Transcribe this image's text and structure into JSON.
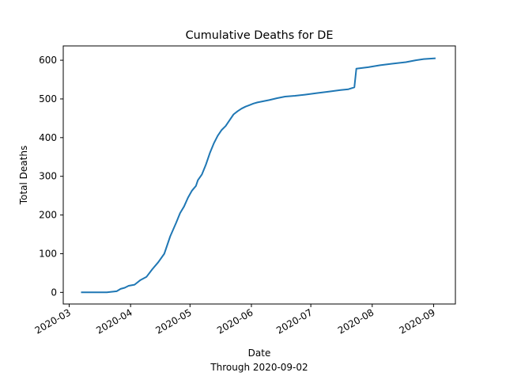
{
  "chart_data": {
    "type": "line",
    "title": "Cumulative Deaths for DE",
    "xlabel": "Date",
    "xlabel_sub": "Through 2020-09-02",
    "ylabel": "Total Deaths",
    "xlim": [
      "2020-02-27",
      "2020-09-12"
    ],
    "ylim": [
      -30,
      637
    ],
    "grid": false,
    "legend": "none",
    "x_ticks": [
      "2020-03",
      "2020-04",
      "2020-05",
      "2020-06",
      "2020-07",
      "2020-08",
      "2020-09"
    ],
    "y_ticks": [
      0,
      100,
      200,
      300,
      400,
      500,
      600
    ],
    "colors": {
      "line": "#1f77b4"
    },
    "series": [
      {
        "x": [
          "2020-03-07",
          "2020-03-20",
          "2020-03-25",
          "2020-03-27",
          "2020-03-29",
          "2020-03-31",
          "2020-04-03",
          "2020-04-06",
          "2020-04-09",
          "2020-04-12",
          "2020-04-15",
          "2020-04-18",
          "2020-04-21",
          "2020-04-24",
          "2020-04-26",
          "2020-04-28",
          "2020-04-30",
          "2020-05-02",
          "2020-05-04",
          "2020-05-05",
          "2020-05-07",
          "2020-05-09",
          "2020-05-11",
          "2020-05-13",
          "2020-05-15",
          "2020-05-17",
          "2020-05-19",
          "2020-05-21",
          "2020-05-23",
          "2020-05-25",
          "2020-05-27",
          "2020-05-29",
          "2020-05-31",
          "2020-06-02",
          "2020-06-04",
          "2020-06-07",
          "2020-06-10",
          "2020-06-14",
          "2020-06-18",
          "2020-06-23",
          "2020-06-28",
          "2020-07-04",
          "2020-07-10",
          "2020-07-16",
          "2020-07-20",
          "2020-07-23",
          "2020-07-24",
          "2020-07-30",
          "2020-08-05",
          "2020-08-11",
          "2020-08-18",
          "2020-08-23",
          "2020-08-27",
          "2020-09-02"
        ],
        "y": [
          0,
          0,
          3,
          9,
          12,
          17,
          20,
          32,
          40,
          60,
          78,
          100,
          145,
          180,
          205,
          222,
          245,
          263,
          275,
          290,
          305,
          330,
          360,
          385,
          405,
          420,
          430,
          445,
          460,
          468,
          475,
          480,
          484,
          488,
          491,
          494,
          497,
          502,
          506,
          508,
          511,
          515,
          519,
          523,
          525,
          530,
          578,
          582,
          587,
          591,
          595,
          600,
          603,
          605
        ]
      }
    ]
  }
}
